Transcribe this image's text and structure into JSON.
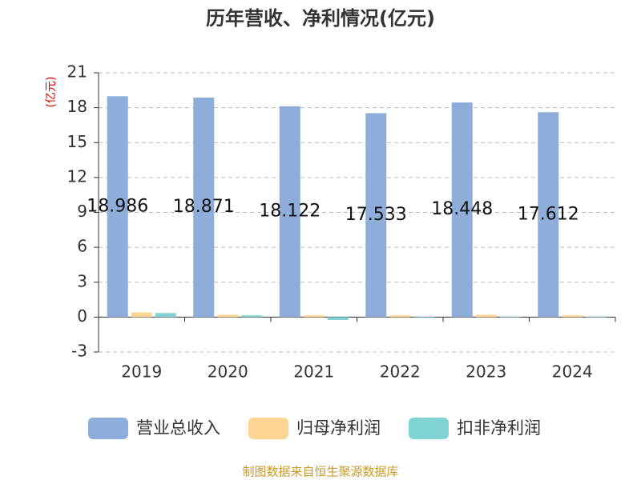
{
  "chart_data": {
    "type": "bar",
    "title": "历年营收、净利情况(亿元)",
    "y_label": "(亿元)",
    "categories": [
      "2019",
      "2020",
      "2021",
      "2022",
      "2023",
      "2024"
    ],
    "series": [
      {
        "name": "营业总收入",
        "color": "#8eadd9",
        "values": [
          18.986,
          18.871,
          18.122,
          17.533,
          18.448,
          17.612
        ],
        "show_labels": true
      },
      {
        "name": "归母净利润",
        "color": "#fdd592",
        "values": [
          0.4,
          0.2,
          0.15,
          0.15,
          0.2,
          0.15
        ]
      },
      {
        "name": "扣非净利润",
        "color": "#80d4d4",
        "values": [
          0.35,
          0.15,
          -0.25,
          -0.05,
          0.02,
          0.02
        ]
      }
    ],
    "ylim": [
      -3,
      21
    ],
    "yticks": [
      -3,
      0,
      3,
      6,
      9,
      12,
      15,
      18,
      21
    ],
    "grid": true,
    "source": "制图数据来自恒生聚源数据库"
  }
}
